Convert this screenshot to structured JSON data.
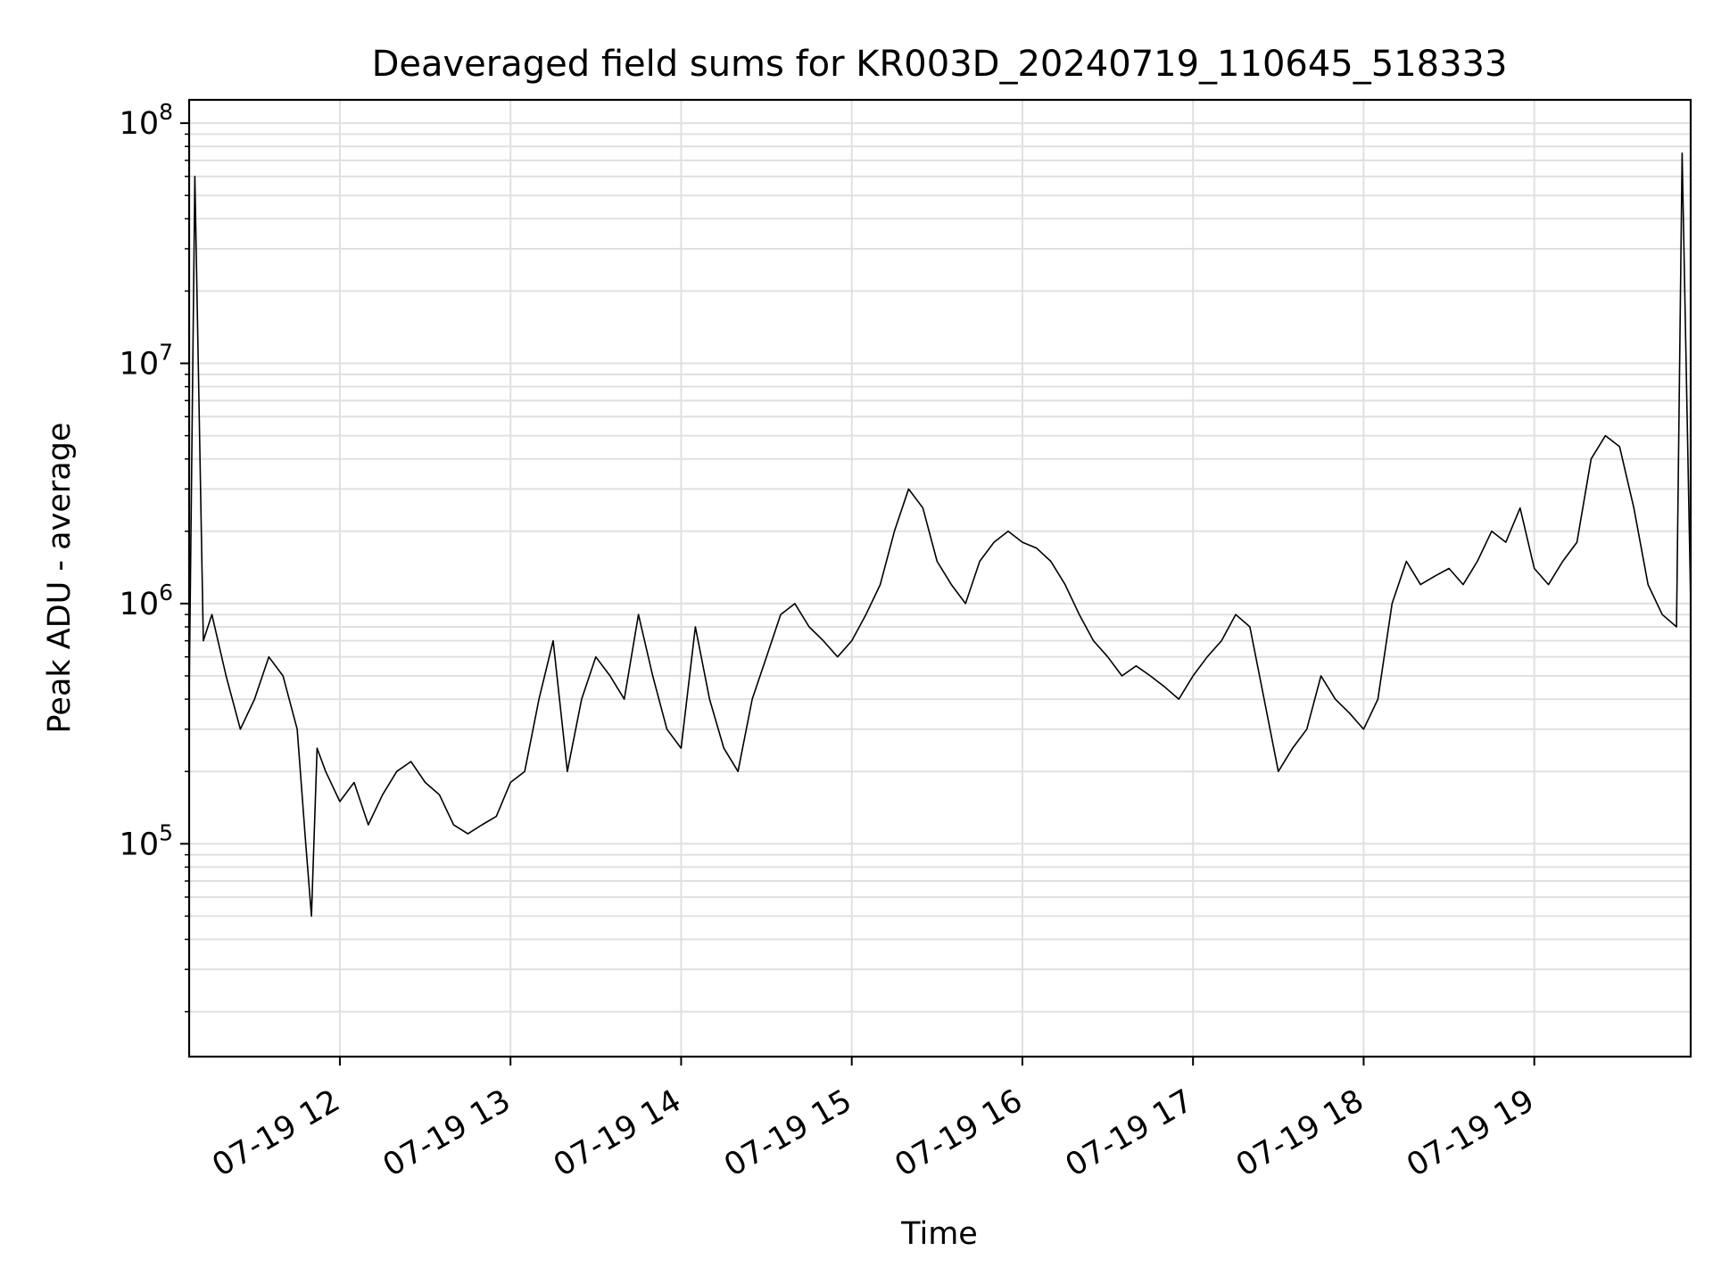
{
  "chart_data": {
    "type": "line",
    "title": "Deaveraged field sums for KR003D_20240719_110645_518333",
    "xlabel": "Time",
    "ylabel": "Peak ADU - average",
    "x_ticks": [
      "07-19 12",
      "07-19 13",
      "07-19 14",
      "07-19 15",
      "07-19 16",
      "07-19 17",
      "07-19 18",
      "07-19 19"
    ],
    "y_ticks": [
      {
        "base": "10",
        "exp": "5"
      },
      {
        "base": "10",
        "exp": "6"
      },
      {
        "base": "10",
        "exp": "7"
      },
      {
        "base": "10",
        "exp": "8"
      }
    ],
    "xlim": [
      "2024-07-19 11:07",
      "2024-07-19 19:55"
    ],
    "ylim": [
      13000,
      125000000
    ],
    "y_scale": "log",
    "grid": true,
    "line_color": "#000000",
    "grid_color": "#e0e0e0",
    "series": [
      {
        "x": [
          "11:07",
          "11:09",
          "11:12",
          "11:15",
          "11:20",
          "11:25",
          "11:30",
          "11:35",
          "11:40",
          "11:45",
          "11:48",
          "11:50",
          "11:52",
          "11:55",
          "12:00",
          "12:05",
          "12:10",
          "12:15",
          "12:20",
          "12:25",
          "12:30",
          "12:35",
          "12:40",
          "12:45",
          "12:50",
          "12:55",
          "13:00",
          "13:05",
          "13:10",
          "13:15",
          "13:20",
          "13:25",
          "13:30",
          "13:35",
          "13:40",
          "13:45",
          "13:50",
          "13:55",
          "14:00",
          "14:05",
          "14:10",
          "14:15",
          "14:20",
          "14:25",
          "14:30",
          "14:35",
          "14:40",
          "14:45",
          "14:50",
          "14:55",
          "15:00",
          "15:05",
          "15:10",
          "15:15",
          "15:20",
          "15:25",
          "15:30",
          "15:35",
          "15:40",
          "15:45",
          "15:50",
          "15:55",
          "16:00",
          "16:05",
          "16:10",
          "16:15",
          "16:20",
          "16:25",
          "16:30",
          "16:35",
          "16:40",
          "16:45",
          "16:50",
          "16:55",
          "17:00",
          "17:05",
          "17:10",
          "17:15",
          "17:20",
          "17:25",
          "17:30",
          "17:35",
          "17:40",
          "17:45",
          "17:50",
          "17:55",
          "18:00",
          "18:05",
          "18:10",
          "18:15",
          "18:20",
          "18:25",
          "18:30",
          "18:35",
          "18:40",
          "18:45",
          "18:50",
          "18:55",
          "19:00",
          "19:05",
          "19:10",
          "19:15",
          "19:20",
          "19:25",
          "19:30",
          "19:35",
          "19:40",
          "19:45",
          "19:50",
          "19:52",
          "19:55"
        ],
        "y": [
          400000,
          60000000,
          700000,
          900000,
          500000,
          300000,
          400000,
          600000,
          500000,
          300000,
          100000,
          50000,
          250000,
          200000,
          150000,
          180000,
          120000,
          160000,
          200000,
          220000,
          180000,
          160000,
          120000,
          110000,
          120000,
          130000,
          180000,
          200000,
          400000,
          700000,
          200000,
          400000,
          600000,
          500000,
          400000,
          900000,
          500000,
          300000,
          250000,
          800000,
          400000,
          250000,
          200000,
          400000,
          600000,
          900000,
          1000000,
          800000,
          700000,
          600000,
          700000,
          900000,
          1200000,
          2000000,
          3000000,
          2500000,
          1500000,
          1200000,
          1000000,
          1500000,
          1800000,
          2000000,
          1800000,
          1700000,
          1500000,
          1200000,
          900000,
          700000,
          600000,
          500000,
          550000,
          500000,
          450000,
          400000,
          500000,
          600000,
          700000,
          900000,
          800000,
          400000,
          200000,
          250000,
          300000,
          500000,
          400000,
          350000,
          300000,
          400000,
          1000000,
          1500000,
          1200000,
          1300000,
          1400000,
          1200000,
          1500000,
          2000000,
          1800000,
          2500000,
          1400000,
          1200000,
          1500000,
          1800000,
          4000000,
          5000000,
          4500000,
          2500000,
          1200000,
          900000,
          800000,
          75000000,
          1000000
        ]
      }
    ]
  }
}
